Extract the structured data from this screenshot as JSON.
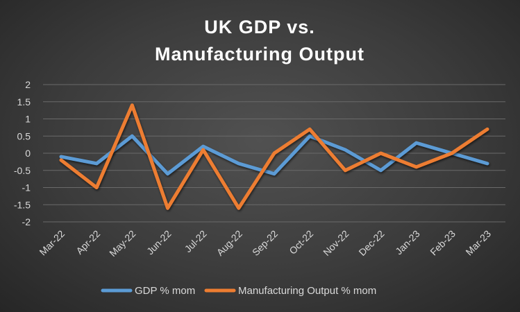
{
  "chart_data": {
    "type": "line",
    "title_lines": [
      "UK GDP vs.",
      "Manufacturing Output"
    ],
    "categories": [
      "Mar-22",
      "Apr-22",
      "May-22",
      "Jun-22",
      "Jul-22",
      "Aug-22",
      "Sep-22",
      "Oct-22",
      "Nov-22",
      "Dec-22",
      "Jan-23",
      "Feb-23",
      "Mar-23"
    ],
    "ylim": [
      -2,
      2
    ],
    "yticks": [
      "2",
      "1.5",
      "1",
      "0.5",
      "0",
      "-0.5",
      "-1",
      "-1.5",
      "-2"
    ],
    "grid": true,
    "legend_position": "bottom",
    "series": [
      {
        "name": "GDP % mom",
        "color": "#5b9bd5",
        "values": [
          -0.1,
          -0.3,
          0.5,
          -0.6,
          0.2,
          -0.3,
          -0.6,
          0.5,
          0.1,
          -0.5,
          0.3,
          0.0,
          -0.3
        ]
      },
      {
        "name": "Manufacturing Output % mom",
        "color": "#ed7d31",
        "values": [
          -0.2,
          -1.0,
          1.4,
          -1.6,
          0.1,
          -1.6,
          0.0,
          0.7,
          -0.5,
          0.0,
          -0.4,
          0.0,
          0.7
        ]
      }
    ]
  }
}
